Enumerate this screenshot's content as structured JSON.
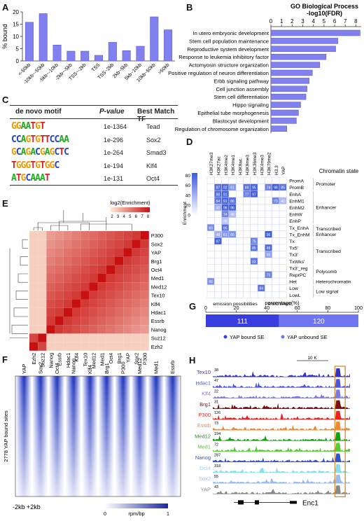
{
  "panel_labels": {
    "A": "A",
    "B": "B",
    "C": "C",
    "D": "D",
    "E": "E",
    "F": "F",
    "G": "G",
    "H": "H"
  },
  "colors": {
    "bar": "#8080ee",
    "bar_dark": "#5555dd",
    "heat_high": "#cc1111",
    "heat_low": "#fde9d9",
    "blue_dark": "#1a2aa0",
    "blue_mid": "#5a6cf0"
  },
  "chart_data": [
    {
      "id": "A",
      "type": "bar",
      "ylabel": "% bound",
      "categories": [
        "<-50kb",
        "-10kb~-50kb",
        "-5kb~-10kb",
        "-2kb~-5kb",
        "TSS~-2kb",
        "TSS",
        "TSS~2kb",
        "2kb~5kb",
        "5kb~10kb",
        "10kb~50kb",
        ">50kb"
      ],
      "values": [
        15.8,
        19.3,
        6.5,
        4.0,
        4.0,
        2.3,
        7.6,
        4.2,
        6.0,
        18.0,
        12.7
      ],
      "ylim": [
        0,
        20
      ],
      "yticks": [
        0,
        5,
        10,
        15,
        20
      ]
    },
    {
      "id": "B",
      "type": "bar",
      "orientation": "horizontal",
      "title": "GO Biological Process",
      "xlabel": "-log10(FDR)",
      "categories": [
        "In utero embryonic development",
        "Stem cell population maintenance",
        "Reproductive system development",
        "Response to leukemia inhibitory factor",
        "Actomyosin structure organization",
        "Positive regulation of neuron differentiation",
        "Erbb signaling pathway",
        "Cell junction assembly",
        "Stem cell differentiation",
        "Hippo signaling",
        "Epithelial tube morphogenesis",
        "Blastocyst development",
        "Regulation of chromosome organization"
      ],
      "values": [
        8.4,
        6.3,
        6.1,
        5.2,
        4.6,
        3.9,
        3.6,
        3.4,
        3.3,
        2.8,
        2.6,
        2.4,
        1.5
      ],
      "xlim": [
        0,
        8.5
      ],
      "xticks": [
        0,
        1,
        2,
        3,
        4,
        5,
        6,
        7,
        8
      ]
    },
    {
      "id": "D",
      "type": "heatmap",
      "columns": [
        "H3K27me3",
        "H3K27ac",
        "H3K4me2",
        "H3K4me1",
        "H3K9ac",
        "H3K9me3",
        "H3K36me3",
        "H3K4me3",
        "H3K79me2",
        "H3.3",
        "YAP"
      ],
      "rows": [
        "PromA",
        "PromB",
        "EnhA",
        "EnhM1",
        "EnhM2",
        "EnhW",
        "EnhP",
        "Tx_EnhA",
        "Tx_EnhM",
        "Tx",
        "Tx5'",
        "Tx3'",
        "TxWks'",
        "Tx3'_reg",
        "ReprPC",
        "Het",
        "Low",
        "LowL"
      ],
      "cells": [
        [
          1,
          87,
          1
        ],
        [
          1,
          92,
          2
        ],
        [
          1,
          61,
          3
        ],
        [
          1,
          84,
          5
        ],
        [
          1,
          95,
          6
        ],
        [
          1,
          74,
          8
        ],
        [
          1,
          98,
          9
        ],
        [
          1,
          85,
          10
        ],
        [
          2,
          88,
          1
        ],
        [
          2,
          91,
          2
        ],
        [
          2,
          77,
          5
        ],
        [
          2,
          97,
          6
        ],
        [
          3,
          84,
          1
        ],
        [
          3,
          91,
          2
        ],
        [
          3,
          86,
          3
        ],
        [
          3,
          73,
          9
        ],
        [
          3,
          40,
          10
        ],
        [
          4,
          50,
          1
        ],
        [
          4,
          96,
          2
        ],
        [
          4,
          96,
          3
        ],
        [
          5,
          74,
          2
        ],
        [
          5,
          40,
          3
        ],
        [
          6,
          36,
          2
        ],
        [
          7,
          69,
          0
        ],
        [
          7,
          86,
          2
        ],
        [
          8,
          48,
          1
        ],
        [
          8,
          61,
          2
        ],
        [
          8,
          65,
          3
        ],
        [
          8,
          96,
          8
        ],
        [
          9,
          97,
          1
        ],
        [
          9,
          75,
          6
        ],
        [
          10,
          85,
          6
        ],
        [
          10,
          89,
          8
        ],
        [
          11,
          55,
          8
        ],
        [
          12,
          83,
          6
        ],
        [
          14,
          75,
          8
        ],
        [
          15,
          66,
          0
        ],
        [
          16,
          84,
          7
        ]
      ],
      "colorbar": {
        "label": "Enrichment",
        "ticks": [
          0,
          20,
          40,
          60,
          80
        ]
      },
      "groups": [
        {
          "label": "Promoter",
          "rows": [
            0,
            1
          ]
        },
        {
          "label": "Enhancer",
          "rows": [
            2,
            6
          ]
        },
        {
          "label": "Transcribed Enhancer",
          "rows": [
            7,
            8
          ]
        },
        {
          "label": "Transcribed",
          "rows": [
            9,
            12
          ]
        },
        {
          "label": "Polycomb",
          "rows": [
            13,
            14
          ]
        },
        {
          "label": "Heterochromatin",
          "rows": [
            15,
            15
          ]
        },
        {
          "label": "Low signal",
          "rows": [
            16,
            17
          ]
        }
      ],
      "header_right": "Chromatin state",
      "xlabel_left": "emission possibilities",
      "xlabel_right": "enrichment"
    },
    {
      "id": "E",
      "type": "heatmap",
      "legend_title": "log2(Enrichment)",
      "legend_ticks": [
        "2",
        "3",
        "4",
        "5",
        "6",
        "7",
        "8"
      ],
      "rows": [
        "P300",
        "Sox2",
        "YAP",
        "Brg1",
        "Oct4",
        "Med1",
        "Med12",
        "Tex10",
        "Klf4",
        "Hdac1",
        "Essrb",
        "Nanog",
        "Suz12",
        "Ezh2"
      ],
      "columns": [
        "Ezh2",
        "Suz12",
        "Nanog",
        "Essrb",
        "Hdac1",
        "Klf4",
        "Tex10",
        "Med12",
        "Med1",
        "Oct4",
        "Brg1",
        "YAP",
        "Sox2",
        "P300"
      ]
    },
    {
      "id": "G",
      "type": "bar",
      "orientation": "stacked-horizontal",
      "title": "percentage(%)",
      "xticks": [
        0,
        20,
        40,
        60,
        80,
        100
      ],
      "series": [
        {
          "name": "YAP bound SE",
          "values": [
            111
          ]
        },
        {
          "name": "YAP unbound SE",
          "values": [
            120
          ]
        }
      ]
    }
  ],
  "motifs": {
    "headers": [
      "de novo motif",
      "P-value",
      "Best Match TF"
    ],
    "rows": [
      {
        "motif": "GGAATGT",
        "p": "1e-1364",
        "tf": "Tead"
      },
      {
        "motif": "CCAGTGTTCCAA",
        "p": "1e-296",
        "tf": "Sox2"
      },
      {
        "motif": "GCAGACGAGCTC",
        "p": "1e-264",
        "tf": "Smad3"
      },
      {
        "motif": "TGGGTGTGGC",
        "p": "1e-194",
        "tf": "Klf4"
      },
      {
        "motif": "ATGCAAAT",
        "p": "1e-131",
        "tf": "Oct4"
      }
    ]
  },
  "panel_f": {
    "columns": [
      "YAP",
      "Sox2",
      "Oct4",
      "Nanog",
      "Klf4",
      "Brg1",
      "P300",
      "Med12",
      "Med1",
      "Essrb"
    ],
    "ylabel": "2778 YAP bound sites",
    "xlabel": "-2kb  +2kb",
    "scale_label": "rpm/bp",
    "scale_min": "0",
    "scale_max": "1"
  },
  "panel_h": {
    "scale_label": "10 K",
    "gene": "Enc1",
    "tracks": [
      {
        "name": "Tex10",
        "max": "38",
        "color": "#3333cc"
      },
      {
        "name": "Hdac1",
        "max": "47",
        "color": "#4b55dd"
      },
      {
        "name": "Klf4",
        "max": "22",
        "color": "#7a7ae6"
      },
      {
        "name": "Brg1",
        "max": "31",
        "color": "#7a1010"
      },
      {
        "name": "P300",
        "max": "126",
        "color": "#ee2222"
      },
      {
        "name": "Essrb",
        "max": "73",
        "color": "#ee8833"
      },
      {
        "name": "Med12",
        "max": "194",
        "color": "#11a011"
      },
      {
        "name": "Med1",
        "max": "72",
        "color": "#55cc33"
      },
      {
        "name": "Nanog",
        "max": "287",
        "color": "#3355cc"
      },
      {
        "name": "Oct4",
        "max": "318",
        "color": "#88ddee"
      },
      {
        "name": "Sox2",
        "max": "55",
        "color": "#99bbee"
      },
      {
        "name": "YAP",
        "max": "43",
        "color": "#888888"
      }
    ]
  }
}
